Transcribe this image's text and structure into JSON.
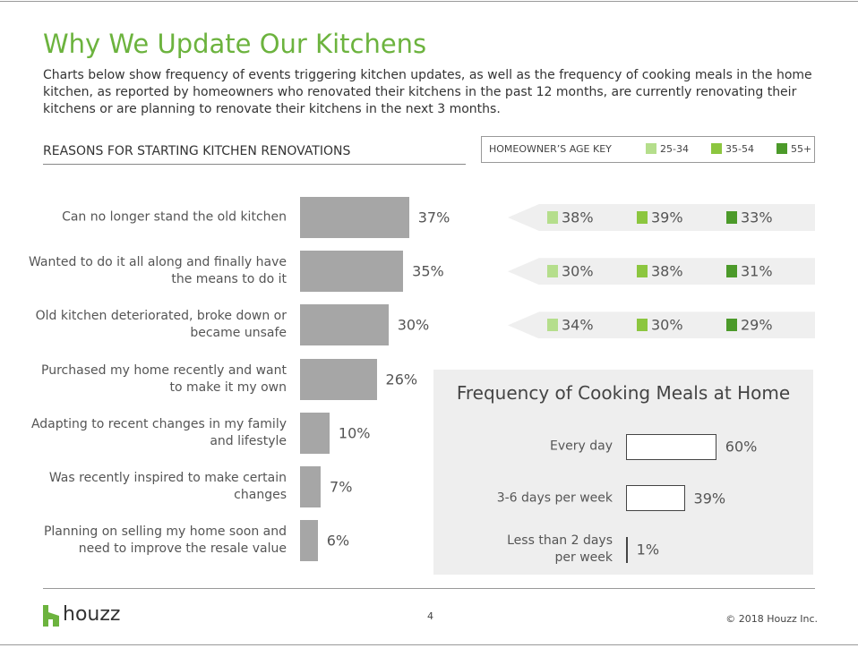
{
  "title": "Why We Update Our Kitchens",
  "subtitle": "Charts below show frequency of events triggering kitchen updates, as well as the frequency of cooking meals in the home kitchen, as reported by homeowners who renovated their kitchens in the past 12 months, are currently renovating their kitchens or are planning to renovate their kitchens in the next 3 months.",
  "footer": {
    "brand": "houzz",
    "page": "4",
    "copyright": "© 2018 Houzz Inc."
  },
  "chart_data": [
    {
      "type": "hbar",
      "title": "REASONS FOR STARTING KITCHEN RENOVATIONS",
      "categories": [
        "Can no longer stand the old kitchen",
        "Wanted to do it all along and finally have the means to do it",
        "Old kitchen deteriorated, broke down or became unsafe",
        "Purchased my home recently and want to make it my own",
        "Adapting to recent changes in my family and lifestyle",
        "Was recently inspired to make certain changes",
        "Planning on selling my home soon and need to improve the resale value"
      ],
      "values": [
        37,
        35,
        30,
        26,
        10,
        7,
        6
      ],
      "value_labels": [
        "37%",
        "35%",
        "30%",
        "26%",
        "10%",
        "7%",
        "6%"
      ],
      "color": "#a6a6a6",
      "legend_title": "HOMEOWNER’S AGE KEY",
      "series": [
        {
          "name": "25-34",
          "color": "#b5de8c",
          "values": [
            38,
            30,
            34,
            null,
            null,
            null,
            null
          ],
          "value_labels": [
            "38%",
            "30%",
            "34%",
            null,
            null,
            null,
            null
          ]
        },
        {
          "name": "35-54",
          "color": "#8cc63f",
          "values": [
            39,
            38,
            30,
            null,
            null,
            null,
            null
          ],
          "value_labels": [
            "39%",
            "38%",
            "30%",
            null,
            null,
            null,
            null
          ]
        },
        {
          "name": "55+",
          "color": "#4c9a2a",
          "values": [
            33,
            31,
            29,
            null,
            null,
            null,
            null
          ],
          "value_labels": [
            "33%",
            "31%",
            "29%",
            null,
            null,
            null,
            null
          ]
        }
      ]
    },
    {
      "type": "hbar",
      "title": "Frequency of Cooking Meals at Home",
      "categories": [
        "Every day",
        "3-6 days per week",
        "Less than 2 days per week"
      ],
      "values": [
        60,
        39,
        1
      ],
      "value_labels": [
        "60%",
        "39%",
        "1%"
      ],
      "color": "#ffffff"
    }
  ]
}
